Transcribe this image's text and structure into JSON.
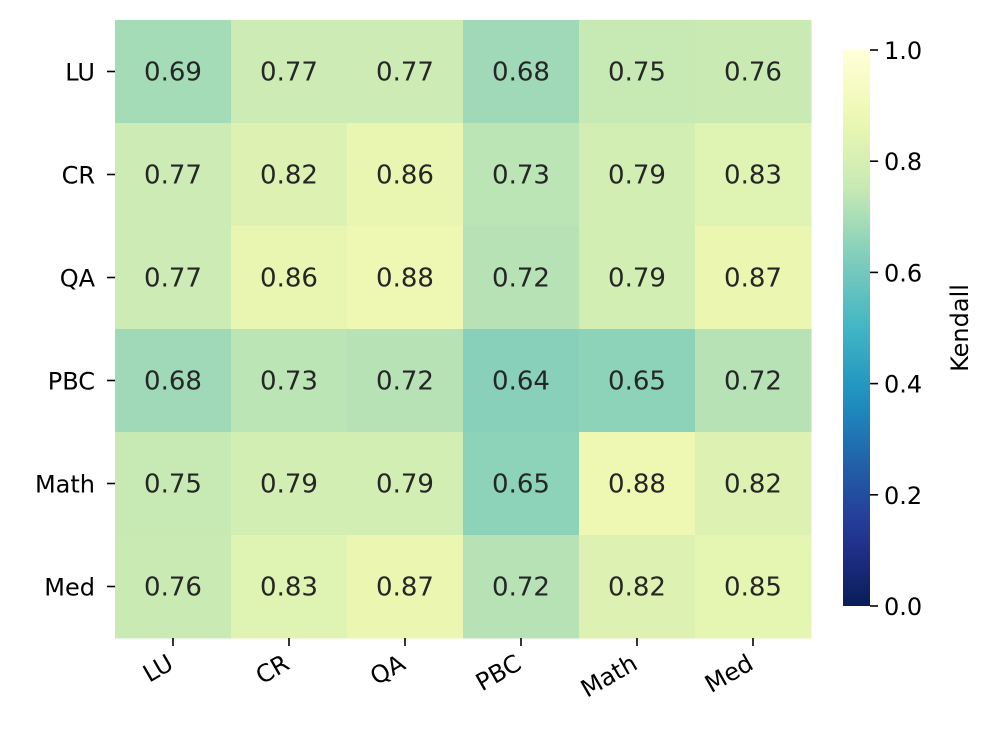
{
  "chart_data": {
    "type": "heatmap",
    "row_labels": [
      "LU",
      "CR",
      "QA",
      "PBC",
      "Math",
      "Med"
    ],
    "col_labels": [
      "LU",
      "CR",
      "QA",
      "PBC",
      "Math",
      "Med"
    ],
    "values": [
      [
        0.69,
        0.77,
        0.77,
        0.68,
        0.75,
        0.76
      ],
      [
        0.77,
        0.82,
        0.86,
        0.73,
        0.79,
        0.83
      ],
      [
        0.77,
        0.86,
        0.88,
        0.72,
        0.79,
        0.87
      ],
      [
        0.68,
        0.73,
        0.72,
        0.64,
        0.65,
        0.72
      ],
      [
        0.75,
        0.79,
        0.79,
        0.65,
        0.88,
        0.82
      ],
      [
        0.76,
        0.83,
        0.87,
        0.72,
        0.82,
        0.85
      ]
    ],
    "colormap": "YlGnBu",
    "vmin": 0.0,
    "vmax": 1.0,
    "colorbar_label": "Kendall",
    "colorbar_ticks": [
      "0.0",
      "0.2",
      "0.4",
      "0.6",
      "0.8",
      "1.0"
    ],
    "colorbar_tick_values": [
      0.0,
      0.2,
      0.4,
      0.6,
      0.8,
      1.0
    ],
    "annotations": true,
    "x_tick_rotation": 30
  }
}
